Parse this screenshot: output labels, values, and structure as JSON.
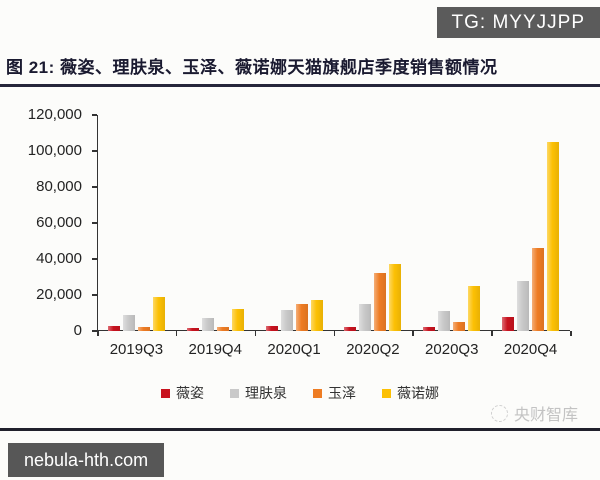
{
  "banner": {
    "text": "TG: MYYJJPP"
  },
  "title": {
    "text": "图 21: 薇姿、理肤泉、玉泽、薇诺娜天猫旗舰店季度销售额情况"
  },
  "watermark_right": {
    "text": "央财智库",
    "icon": "globe-icon"
  },
  "watermark_bottom": {
    "text": "nebula-hth.com"
  },
  "colors": {
    "banner_bg": "#5b5b5b",
    "url_box_bg": "#575757",
    "divider": "#20202c",
    "series_weizi": "#c8121e",
    "series_lifuquan": "#c9c9c9",
    "series_yuze": "#ee7c23",
    "series_winona": "#fcc004"
  },
  "chart_data": {
    "type": "bar",
    "title": "薇姿、理肤泉、玉泽、薇诺娜天猫旗舰店季度销售额情况",
    "categories": [
      "2019Q3",
      "2019Q4",
      "2020Q1",
      "2020Q2",
      "2020Q3",
      "2020Q4"
    ],
    "series": [
      {
        "name": "薇姿",
        "color": "#c8121e",
        "values": [
          3000,
          1500,
          3000,
          2500,
          2000,
          8000
        ]
      },
      {
        "name": "理肤泉",
        "color": "#c9c9c9",
        "values": [
          9000,
          7000,
          11500,
          15000,
          11000,
          28000
        ]
      },
      {
        "name": "玉泽",
        "color": "#ee7c23",
        "values": [
          2500,
          2000,
          15000,
          32000,
          5000,
          46000
        ]
      },
      {
        "name": "薇诺娜",
        "color": "#fcc004",
        "values": [
          19000,
          12500,
          17000,
          37500,
          25000,
          105000
        ]
      }
    ],
    "xlabel": "",
    "ylabel": "",
    "ylim": [
      0,
      120000
    ],
    "ytick_step": 20000,
    "ytick_labels": [
      "0",
      "20,000",
      "40,000",
      "60,000",
      "80,000",
      "100,000",
      "120,000"
    ],
    "legend_position": "bottom",
    "grid": false
  }
}
